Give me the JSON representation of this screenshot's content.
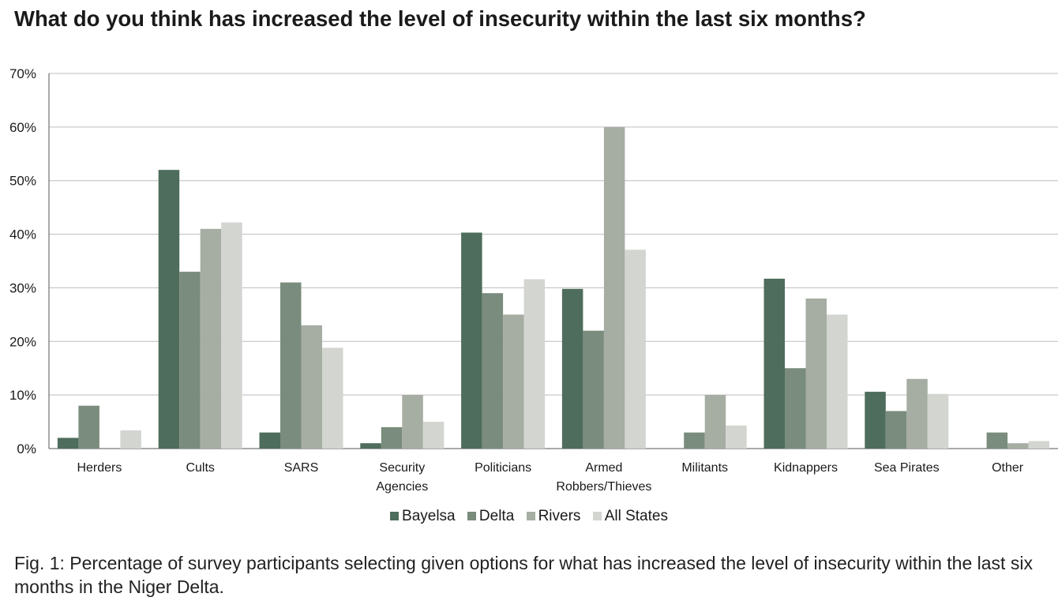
{
  "chart_data": {
    "type": "bar",
    "title": "What do you think has increased the level of insecurity within the last six months?",
    "categories": [
      [
        "Herders"
      ],
      [
        "Cults"
      ],
      [
        "SARS"
      ],
      [
        "Security",
        "Agencies"
      ],
      [
        "Politicians"
      ],
      [
        "Armed",
        "Robbers/Thieves"
      ],
      [
        "Militants"
      ],
      [
        "Kidnappers"
      ],
      [
        "Sea Pirates"
      ],
      [
        "Other"
      ]
    ],
    "series": [
      {
        "name": "Bayelsa",
        "color": "#4e6d5c",
        "values": [
          2,
          52,
          3,
          1,
          40.3,
          29.8,
          0,
          31.7,
          10.6,
          0
        ]
      },
      {
        "name": "Delta",
        "color": "#7a8c7d",
        "values": [
          8,
          33,
          31,
          4,
          29,
          22,
          3,
          15,
          7,
          3
        ]
      },
      {
        "name": "Rivers",
        "color": "#a6ada3",
        "values": [
          0,
          41,
          23,
          10,
          25,
          60,
          10,
          28,
          13,
          1
        ]
      },
      {
        "name": "All States",
        "color": "#d3d5d1",
        "values": [
          3.4,
          42.2,
          18.8,
          5,
          31.6,
          37.1,
          4.3,
          25,
          10.2,
          1.4
        ]
      }
    ],
    "ylim": [
      0,
      70
    ],
    "yticks": [
      "0%",
      "10%",
      "20%",
      "30%",
      "40%",
      "50%",
      "60%",
      "70%"
    ],
    "grid": true,
    "legend_position": "bottom"
  },
  "caption": "Fig. 1: Percentage of survey participants selecting given options for what has increased the level of insecurity within the last six months in the Niger Delta."
}
